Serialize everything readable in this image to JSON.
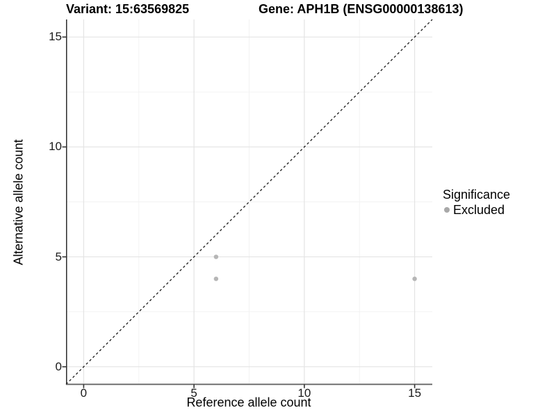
{
  "header": {
    "variant_title": "Variant: 15:63569825",
    "gene_title": "Gene: APH1B (ENSG00000138613)"
  },
  "chart_data": {
    "type": "scatter",
    "xlabel": "Reference allele count",
    "ylabel": "Alternative allele count",
    "xlim": [
      -0.8,
      15.8
    ],
    "ylim": [
      -0.8,
      15.8
    ],
    "xticks": [
      0,
      5,
      10,
      15
    ],
    "yticks": [
      0,
      5,
      10,
      15
    ],
    "x_minor_gridlines": [
      2.5,
      7.5,
      12.5
    ],
    "y_minor_gridlines": [
      2.5,
      7.5,
      12.5
    ],
    "grid": true,
    "reference_line": {
      "type": "identity",
      "slope": 1,
      "intercept": 0,
      "style": "dashed"
    },
    "series": [
      {
        "name": "Excluded",
        "marker": "circle",
        "color": "#b6b6b6",
        "points": [
          {
            "x": 6,
            "y": 5
          },
          {
            "x": 6,
            "y": 4
          },
          {
            "x": 15,
            "y": 4
          }
        ]
      }
    ],
    "legend": {
      "position": "right",
      "title": "Significance",
      "items": [
        {
          "label": "Excluded",
          "color": "#a8a8a8"
        }
      ]
    }
  },
  "colors": {
    "background": "#ffffff",
    "grid_major": "#e4e4e4",
    "grid_minor": "#f2f2f2",
    "axis_line_x": "#7f7f7f",
    "axis_line_y": "#2b2b2b",
    "tick_mark": "#333333",
    "tick_label": "#1a1a1a",
    "reference_line": "#1a1a1a",
    "title_text": "#000000"
  }
}
